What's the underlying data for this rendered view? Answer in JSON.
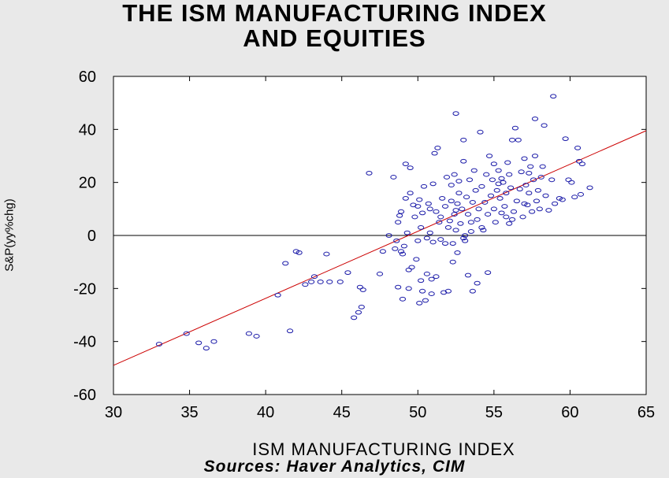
{
  "chart_data": {
    "type": "scatter",
    "title_line1": "THE ISM MANUFACTURING INDEX",
    "title_line2": "AND EQUITIES",
    "xlabel": "ISM MANUFACTURING INDEX",
    "ylabel": "S&P(yy%chg)",
    "source": "Sources:  Haver Analytics, CIM",
    "xlim": [
      30,
      65
    ],
    "ylim": [
      -60,
      60
    ],
    "xticks": [
      30,
      35,
      40,
      45,
      50,
      55,
      60,
      65
    ],
    "yticks": [
      -60,
      -40,
      -20,
      0,
      20,
      40,
      60
    ],
    "zero_line": true,
    "grid": false,
    "regression_line": {
      "x": [
        30,
        65
      ],
      "y": [
        -49,
        39.5
      ],
      "color": "#cc0000"
    },
    "marker_color": "#1a1aa8",
    "points": [
      [
        33.0,
        -41
      ],
      [
        34.8,
        -37
      ],
      [
        35.6,
        -40.5
      ],
      [
        36.1,
        -42.5
      ],
      [
        36.6,
        -40
      ],
      [
        38.9,
        -37
      ],
      [
        39.4,
        -38
      ],
      [
        40.8,
        -22.5
      ],
      [
        41.3,
        -10.5
      ],
      [
        41.6,
        -36
      ],
      [
        42.0,
        -6
      ],
      [
        42.2,
        -6.5
      ],
      [
        42.6,
        -18.5
      ],
      [
        43.0,
        -17.5
      ],
      [
        43.2,
        -15.5
      ],
      [
        43.6,
        -17.5
      ],
      [
        44.0,
        -7
      ],
      [
        44.2,
        -17.5
      ],
      [
        44.9,
        -17.5
      ],
      [
        45.4,
        -14
      ],
      [
        45.8,
        -31
      ],
      [
        46.1,
        -29
      ],
      [
        46.2,
        -19.5
      ],
      [
        46.3,
        -27
      ],
      [
        46.4,
        -20.5
      ],
      [
        46.8,
        23.5
      ],
      [
        47.5,
        -14.5
      ],
      [
        47.7,
        -6
      ],
      [
        48.1,
        0
      ],
      [
        48.4,
        22
      ],
      [
        48.5,
        -5
      ],
      [
        48.6,
        -2
      ],
      [
        48.7,
        -19.5
      ],
      [
        48.7,
        5
      ],
      [
        48.8,
        7.5
      ],
      [
        48.9,
        9
      ],
      [
        48.9,
        -6
      ],
      [
        49.0,
        -7
      ],
      [
        49.0,
        -24
      ],
      [
        49.1,
        -4
      ],
      [
        49.2,
        14
      ],
      [
        49.2,
        27
      ],
      [
        49.3,
        1
      ],
      [
        49.4,
        -13
      ],
      [
        49.4,
        -20
      ],
      [
        49.5,
        25.5
      ],
      [
        49.5,
        16
      ],
      [
        49.6,
        -12
      ],
      [
        49.7,
        11.5
      ],
      [
        49.8,
        7
      ],
      [
        49.9,
        -9
      ],
      [
        50.0,
        11
      ],
      [
        50.0,
        -2
      ],
      [
        50.1,
        13.5
      ],
      [
        50.1,
        -25.5
      ],
      [
        50.2,
        3
      ],
      [
        50.2,
        -17
      ],
      [
        50.3,
        8.5
      ],
      [
        50.3,
        -21
      ],
      [
        50.4,
        18.5
      ],
      [
        50.5,
        -24.5
      ],
      [
        50.6,
        -14.5
      ],
      [
        50.6,
        -1
      ],
      [
        50.7,
        12
      ],
      [
        50.8,
        1
      ],
      [
        50.8,
        10
      ],
      [
        50.9,
        -16.5
      ],
      [
        50.9,
        -22
      ],
      [
        51.0,
        -2.5
      ],
      [
        51.0,
        19.5
      ],
      [
        51.1,
        31
      ],
      [
        51.2,
        9
      ],
      [
        51.2,
        -15.5
      ],
      [
        51.3,
        33
      ],
      [
        51.4,
        5
      ],
      [
        51.5,
        -1.5
      ],
      [
        51.6,
        14
      ],
      [
        51.7,
        -21.5
      ],
      [
        51.8,
        -3
      ],
      [
        51.8,
        11
      ],
      [
        51.9,
        22
      ],
      [
        52.0,
        3
      ],
      [
        52.0,
        -21
      ],
      [
        52.1,
        5.5
      ],
      [
        52.2,
        13
      ],
      [
        52.2,
        19
      ],
      [
        52.3,
        -3
      ],
      [
        52.3,
        -10
      ],
      [
        52.4,
        8
      ],
      [
        52.4,
        23
      ],
      [
        52.5,
        46
      ],
      [
        52.5,
        2
      ],
      [
        52.6,
        -6.5
      ],
      [
        52.6,
        12
      ],
      [
        52.7,
        16
      ],
      [
        52.7,
        20.5
      ],
      [
        52.8,
        4.5
      ],
      [
        52.9,
        10
      ],
      [
        53.0,
        28
      ],
      [
        53.0,
        36
      ],
      [
        53.1,
        0
      ],
      [
        53.1,
        -2
      ],
      [
        53.2,
        14.5
      ],
      [
        53.3,
        8
      ],
      [
        53.3,
        -15
      ],
      [
        53.4,
        21
      ],
      [
        53.5,
        1.5
      ],
      [
        53.5,
        5
      ],
      [
        53.6,
        12.5
      ],
      [
        53.6,
        -21
      ],
      [
        53.7,
        24.5
      ],
      [
        53.8,
        17
      ],
      [
        53.9,
        6
      ],
      [
        53.9,
        -18
      ],
      [
        54.0,
        10
      ],
      [
        54.1,
        39
      ],
      [
        54.2,
        18.5
      ],
      [
        54.3,
        2
      ],
      [
        54.4,
        12.5
      ],
      [
        54.5,
        23
      ],
      [
        54.6,
        8
      ],
      [
        54.6,
        -14
      ],
      [
        54.7,
        30
      ],
      [
        54.8,
        15
      ],
      [
        54.9,
        21
      ],
      [
        55.0,
        10
      ],
      [
        55.0,
        27
      ],
      [
        55.1,
        5
      ],
      [
        55.2,
        17
      ],
      [
        55.3,
        19.5
      ],
      [
        55.4,
        14
      ],
      [
        55.5,
        21.5
      ],
      [
        55.5,
        8.5
      ],
      [
        55.6,
        20
      ],
      [
        55.7,
        11
      ],
      [
        55.8,
        16
      ],
      [
        55.9,
        27.5
      ],
      [
        56.0,
        4.5
      ],
      [
        56.0,
        23
      ],
      [
        56.1,
        18
      ],
      [
        56.2,
        36
      ],
      [
        56.3,
        9
      ],
      [
        56.4,
        40.5
      ],
      [
        56.5,
        13
      ],
      [
        56.6,
        36
      ],
      [
        56.7,
        17.5
      ],
      [
        56.8,
        24
      ],
      [
        56.9,
        7
      ],
      [
        57.0,
        29
      ],
      [
        57.1,
        19
      ],
      [
        57.2,
        11.5
      ],
      [
        57.3,
        16
      ],
      [
        57.4,
        26
      ],
      [
        57.5,
        9
      ],
      [
        57.6,
        21
      ],
      [
        57.7,
        44
      ],
      [
        57.7,
        30
      ],
      [
        57.8,
        13
      ],
      [
        57.9,
        17
      ],
      [
        58.0,
        10
      ],
      [
        58.1,
        22
      ],
      [
        58.2,
        26
      ],
      [
        58.3,
        41.5
      ],
      [
        58.4,
        15
      ],
      [
        58.6,
        9.5
      ],
      [
        58.8,
        21
      ],
      [
        58.9,
        52.5
      ],
      [
        59.0,
        12
      ],
      [
        59.3,
        14
      ],
      [
        59.5,
        13.5
      ],
      [
        59.7,
        36.5
      ],
      [
        59.9,
        21
      ],
      [
        60.1,
        20
      ],
      [
        60.3,
        14.5
      ],
      [
        60.5,
        33
      ],
      [
        60.6,
        28
      ],
      [
        60.7,
        15.5
      ],
      [
        60.8,
        27
      ],
      [
        61.3,
        18
      ],
      [
        57.0,
        12
      ],
      [
        56.2,
        6
      ],
      [
        55.3,
        24.5
      ],
      [
        54.2,
        3
      ],
      [
        53.0,
        -1
      ],
      [
        52.5,
        9.5
      ],
      [
        51.5,
        7
      ],
      [
        55.8,
        7
      ],
      [
        57.3,
        23.5
      ]
    ]
  }
}
